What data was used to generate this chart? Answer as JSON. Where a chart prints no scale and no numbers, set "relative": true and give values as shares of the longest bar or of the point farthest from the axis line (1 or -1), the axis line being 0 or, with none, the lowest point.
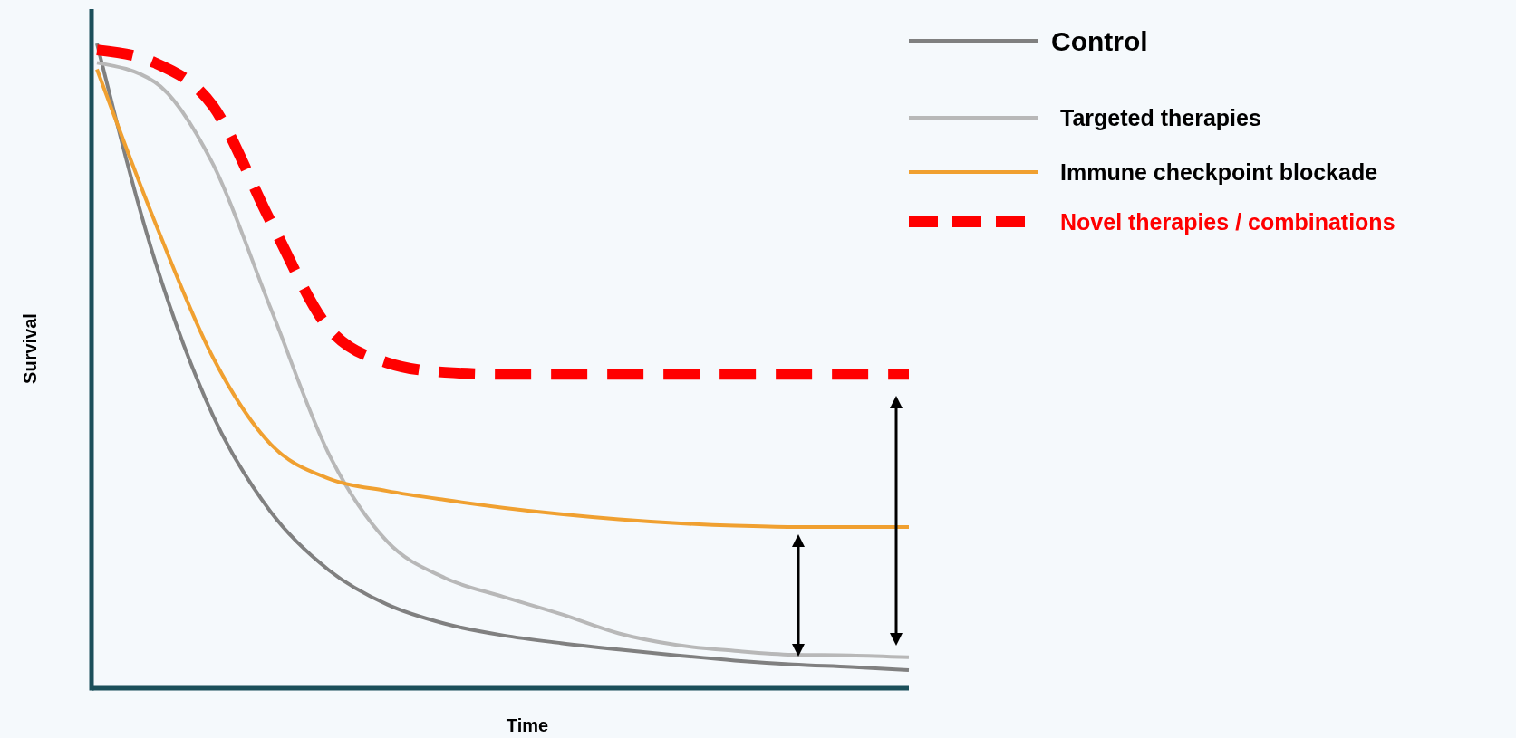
{
  "chart_data": {
    "type": "line",
    "relative": true,
    "xlabel": "Time",
    "ylabel": "Survival",
    "legend": "top right",
    "categories": [
      null,
      null,
      null,
      null,
      null,
      null,
      null,
      null,
      null,
      null,
      null,
      null,
      null,
      null,
      null
    ],
    "series": [
      {
        "name": "Control",
        "color": "#808080",
        "line_style": "solid",
        "values": [
          1.0,
          0.663,
          0.423,
          0.273,
          0.183,
          0.13,
          0.1,
          0.082,
          0.07,
          0.06,
          0.051,
          0.043,
          0.037,
          0.033,
          0.028
        ]
      },
      {
        "name": "Targeted therapies",
        "color": "#b8b8b8",
        "line_style": "solid",
        "values": [
          0.97,
          0.94,
          0.813,
          0.588,
          0.363,
          0.228,
          0.171,
          0.142,
          0.115,
          0.085,
          0.067,
          0.058,
          0.052,
          0.051,
          0.048
        ]
      },
      {
        "name": "Immune checkpoint blockade",
        "color": "#f0a030",
        "line_style": "solid",
        "values": [
          0.96,
          0.723,
          0.513,
          0.378,
          0.325,
          0.306,
          0.292,
          0.28,
          0.27,
          0.262,
          0.256,
          0.252,
          0.25,
          0.25,
          0.25
        ]
      },
      {
        "name": "Novel therapies / combinations",
        "color": "#ff0000",
        "line_style": "dashed",
        "values": [
          0.99,
          0.97,
          0.903,
          0.723,
          0.558,
          0.505,
          0.49,
          0.487,
          0.487,
          0.487,
          0.487,
          0.487,
          0.487,
          0.487,
          0.487
        ]
      }
    ]
  }
}
